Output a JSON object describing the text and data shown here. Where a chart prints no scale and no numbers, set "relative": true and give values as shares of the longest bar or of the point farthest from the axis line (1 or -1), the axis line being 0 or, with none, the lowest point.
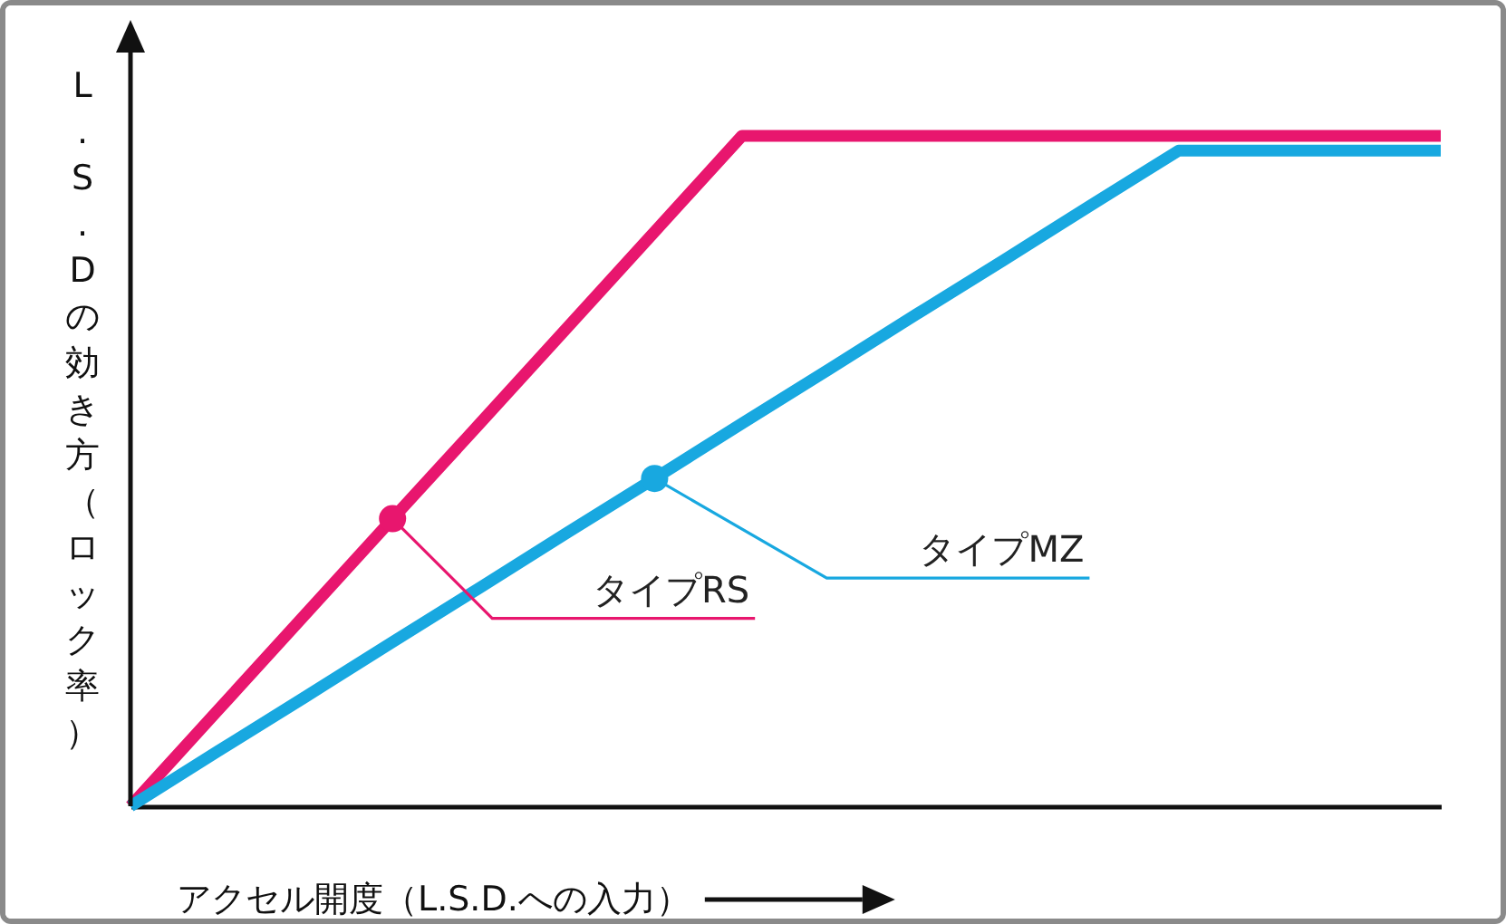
{
  "chart_data": {
    "type": "line",
    "relative": true,
    "xlabel": "アクセル開度（L.S.D.への入力）",
    "ylabel": "L.S.Dの効き方（ロック率）",
    "categories": [
      null,
      null,
      null,
      null,
      null,
      null,
      null,
      null,
      null,
      null,
      null,
      null,
      null,
      null,
      null,
      null
    ],
    "series": [
      {
        "color": "#e8166e",
        "values": [
          0,
          0.143,
          0.286,
          0.429,
          0.571,
          0.714,
          0.857,
          1,
          1,
          1,
          1,
          1,
          1,
          1,
          1,
          1
        ]
      },
      {
        "color": "#18a8e0",
        "values": [
          0,
          0.082,
          0.163,
          0.245,
          0.326,
          0.408,
          0.489,
          0.571,
          0.652,
          0.734,
          0.815,
          0.897,
          0.978,
          0.978,
          0.978,
          0.978
        ]
      }
    ],
    "annotations": [
      "タイプRS",
      "タイプMZ"
    ]
  }
}
